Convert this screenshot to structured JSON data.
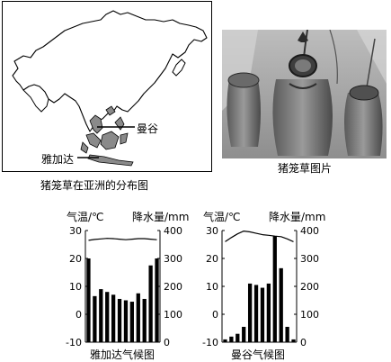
{
  "map": {
    "caption": "猪笼草在亚洲的分布图",
    "label_bangkok": "曼谷",
    "label_jakarta": "雅加达",
    "fill_color": "#888888"
  },
  "photo": {
    "caption": "猪笼草图片"
  },
  "chart_data": [
    {
      "type": "bar",
      "title": "雅加达气候图",
      "ylabel_left": "气温/℃",
      "ylabel_right": "降水量/mm",
      "left_ticks": [
        "30",
        "20",
        "10",
        "0",
        "-10"
      ],
      "right_ticks": [
        "400",
        "300",
        "200",
        "100",
        "0"
      ],
      "ylim_temperature": [
        -10,
        30
      ],
      "ylim_precipitation": [
        0,
        400
      ],
      "months": [
        1,
        2,
        3,
        4,
        5,
        6,
        7,
        8,
        9,
        10,
        11,
        12
      ],
      "precipitation": [
        300,
        165,
        190,
        180,
        170,
        155,
        150,
        145,
        175,
        155,
        275,
        300
      ],
      "temperature": [
        26.5,
        26.8,
        27,
        27.2,
        27.1,
        26.9,
        26.7,
        26.9,
        27.1,
        27.1,
        26.9,
        26.7
      ]
    },
    {
      "type": "bar",
      "title": "曼谷气候图",
      "ylabel_left": "气温/℃",
      "ylabel_right": "降水量/mm",
      "left_ticks": [
        "30",
        "20",
        "10",
        "0",
        "-10"
      ],
      "right_ticks": [
        "400",
        "300",
        "200",
        "100",
        "0"
      ],
      "ylim_temperature": [
        -10,
        30
      ],
      "ylim_precipitation": [
        0,
        400
      ],
      "months": [
        1,
        2,
        3,
        4,
        5,
        6,
        7,
        8,
        9,
        10,
        11,
        12
      ],
      "precipitation": [
        10,
        20,
        30,
        55,
        210,
        205,
        195,
        210,
        380,
        265,
        55,
        10
      ],
      "temperature": [
        26.0,
        27.5,
        28.8,
        29.8,
        29.5,
        29.0,
        28.5,
        28.3,
        28.0,
        27.8,
        27.0,
        26.0
      ]
    }
  ]
}
